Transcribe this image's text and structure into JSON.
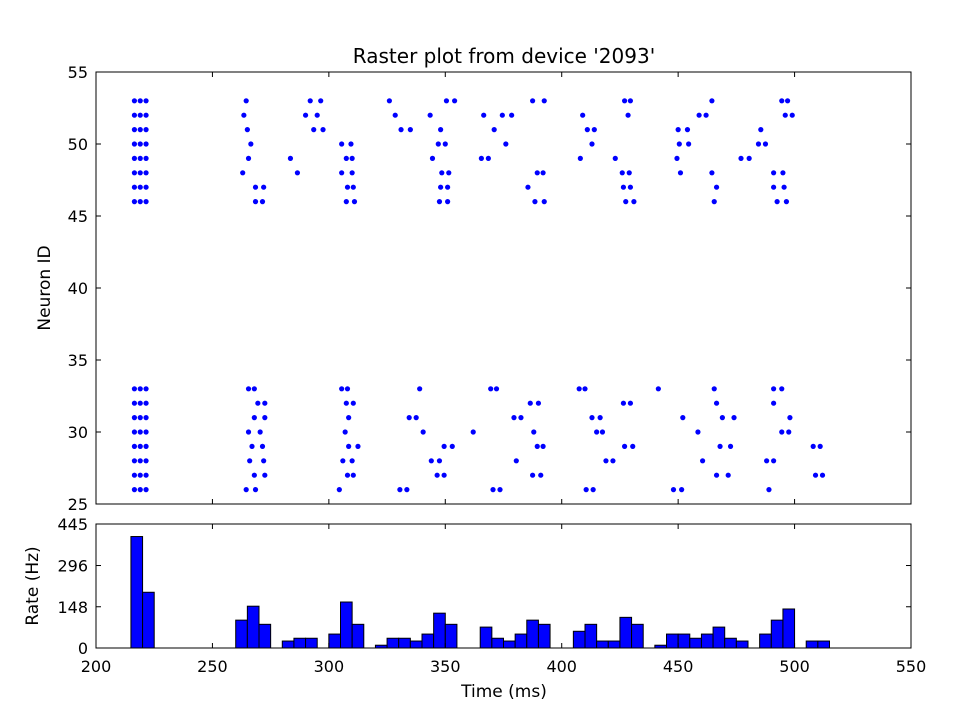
{
  "colors": {
    "marker": "#0000ff",
    "bar_fill": "#0000ff",
    "bar_edge": "#000000",
    "axes": "#000000"
  },
  "chart_data": [
    {
      "type": "scatter",
      "title": "Raster plot from device '2093'",
      "xlabel": "",
      "ylabel": "Neuron ID",
      "xlim": [
        200,
        550
      ],
      "ylim": [
        25,
        55
      ],
      "yticks": [
        25,
        30,
        35,
        40,
        45,
        50,
        55
      ],
      "grid": false,
      "groups": [
        {
          "neurons": [
            46,
            47,
            48,
            49,
            50,
            51,
            52,
            53
          ],
          "times": [
            216.5,
            219.0,
            221.5
          ]
        },
        {
          "neurons": [
            26,
            27,
            28,
            29,
            30,
            31,
            32,
            33
          ],
          "times": [
            216.5,
            219.0,
            221.5
          ]
        },
        {
          "neurons": [
            53
          ],
          "times": [
            264.5
          ]
        },
        {
          "neurons": [
            52
          ],
          "times": [
            263.5
          ]
        },
        {
          "neurons": [
            51
          ],
          "times": [
            265.0
          ]
        },
        {
          "neurons": [
            50
          ],
          "times": [
            266.5
          ]
        },
        {
          "neurons": [
            49
          ],
          "times": [
            265.5
          ]
        },
        {
          "neurons": [
            48
          ],
          "times": [
            263.0
          ]
        },
        {
          "neurons": [
            47
          ],
          "times": [
            268.5,
            272.0
          ]
        },
        {
          "neurons": [
            46
          ],
          "times": [
            268.5,
            271.5
          ]
        },
        {
          "neurons": [
            33
          ],
          "times": [
            265.5,
            268.0
          ]
        },
        {
          "neurons": [
            32
          ],
          "times": [
            269.5,
            272.5
          ]
        },
        {
          "neurons": [
            31
          ],
          "times": [
            268.0,
            272.5
          ]
        },
        {
          "neurons": [
            30
          ],
          "times": [
            265.5,
            270.5
          ]
        },
        {
          "neurons": [
            29
          ],
          "times": [
            267.0,
            271.5
          ]
        },
        {
          "neurons": [
            28
          ],
          "times": [
            266.0,
            272.0
          ]
        },
        {
          "neurons": [
            27
          ],
          "times": [
            268.0,
            272.5
          ]
        },
        {
          "neurons": [
            26
          ],
          "times": [
            264.5,
            268.5
          ]
        },
        {
          "neurons": [
            49
          ],
          "times": [
            283.5
          ]
        },
        {
          "neurons": [
            48
          ],
          "times": [
            286.5
          ]
        },
        {
          "neurons": [
            53
          ],
          "times": [
            292.0,
            296.5
          ]
        },
        {
          "neurons": [
            52
          ],
          "times": [
            290.0,
            295.0
          ]
        },
        {
          "neurons": [
            51
          ],
          "times": [
            293.5,
            297.5
          ]
        },
        {
          "neurons": [
            50
          ],
          "times": [
            305.5,
            309.5
          ]
        },
        {
          "neurons": [
            49
          ],
          "times": [
            307.5,
            310.0
          ]
        },
        {
          "neurons": [
            48
          ],
          "times": [
            305.5,
            310.0
          ]
        },
        {
          "neurons": [
            47
          ],
          "times": [
            308.0,
            310.5
          ]
        },
        {
          "neurons": [
            46
          ],
          "times": [
            307.5,
            311.0
          ]
        },
        {
          "neurons": [
            33
          ],
          "times": [
            305.5,
            308.0
          ]
        },
        {
          "neurons": [
            32
          ],
          "times": [
            307.5,
            310.5
          ]
        },
        {
          "neurons": [
            31
          ],
          "times": [
            308.5
          ]
        },
        {
          "neurons": [
            30
          ],
          "times": [
            307.0
          ]
        },
        {
          "neurons": [
            29
          ],
          "times": [
            308.5,
            312.5
          ]
        },
        {
          "neurons": [
            28
          ],
          "times": [
            306.0,
            310.0
          ]
        },
        {
          "neurons": [
            27
          ],
          "times": [
            308.0,
            310.5
          ]
        },
        {
          "neurons": [
            26
          ],
          "times": [
            304.5
          ]
        },
        {
          "neurons": [
            53
          ],
          "times": [
            326.0
          ]
        },
        {
          "neurons": [
            52
          ],
          "times": [
            328.5
          ]
        },
        {
          "neurons": [
            51
          ],
          "times": [
            331.0,
            335.0
          ]
        },
        {
          "neurons": [
            26
          ],
          "times": [
            330.5,
            333.5
          ]
        },
        {
          "neurons": [
            31
          ],
          "times": [
            334.5,
            337.5
          ]
        },
        {
          "neurons": [
            33
          ],
          "times": [
            339.0
          ]
        },
        {
          "neurons": [
            30
          ],
          "times": [
            340.5
          ]
        },
        {
          "neurons": [
            52
          ],
          "times": [
            343.5
          ]
        },
        {
          "neurons": [
            49
          ],
          "times": [
            344.5
          ]
        },
        {
          "neurons": [
            50
          ],
          "times": [
            347.0,
            350.0
          ]
        },
        {
          "neurons": [
            48
          ],
          "times": [
            348.5,
            351.5
          ]
        },
        {
          "neurons": [
            47
          ],
          "times": [
            348.0,
            351.0
          ]
        },
        {
          "neurons": [
            46
          ],
          "times": [
            347.5,
            351.0
          ]
        },
        {
          "neurons": [
            53
          ],
          "times": [
            350.5,
            354.0
          ]
        },
        {
          "neurons": [
            51
          ],
          "times": [
            348.0
          ]
        },
        {
          "neurons": [
            29
          ],
          "times": [
            349.5,
            353.0
          ]
        },
        {
          "neurons": [
            28
          ],
          "times": [
            344.0,
            347.5
          ]
        },
        {
          "neurons": [
            27
          ],
          "times": [
            346.5,
            349.5
          ]
        },
        {
          "neurons": [
            52
          ],
          "times": [
            366.5
          ]
        },
        {
          "neurons": [
            49
          ],
          "times": [
            365.5,
            368.5
          ]
        },
        {
          "neurons": [
            51
          ],
          "times": [
            371.0
          ]
        },
        {
          "neurons": [
            33
          ],
          "times": [
            369.5,
            372.0
          ]
        },
        {
          "neurons": [
            30
          ],
          "times": [
            362.0
          ]
        },
        {
          "neurons": [
            26
          ],
          "times": [
            370.5,
            373.5
          ]
        },
        {
          "neurons": [
            52
          ],
          "times": [
            374.5,
            378.5
          ]
        },
        {
          "neurons": [
            50
          ],
          "times": [
            376.0
          ]
        },
        {
          "neurons": [
            31
          ],
          "times": [
            379.5,
            382.5
          ]
        },
        {
          "neurons": [
            28
          ],
          "times": [
            380.5
          ]
        },
        {
          "neurons": [
            47
          ],
          "times": [
            385.5
          ]
        },
        {
          "neurons": [
            53
          ],
          "times": [
            387.5,
            392.5
          ]
        },
        {
          "neurons": [
            48
          ],
          "times": [
            389.5,
            392.0
          ]
        },
        {
          "neurons": [
            46
          ],
          "times": [
            388.5,
            392.5
          ]
        },
        {
          "neurons": [
            32
          ],
          "times": [
            386.5,
            390.0
          ]
        },
        {
          "neurons": [
            30
          ],
          "times": [
            388.0
          ]
        },
        {
          "neurons": [
            29
          ],
          "times": [
            389.5,
            392.0
          ]
        },
        {
          "neurons": [
            27
          ],
          "times": [
            387.5,
            391.0
          ]
        },
        {
          "neurons": [
            33
          ],
          "times": [
            407.5,
            410.0
          ]
        },
        {
          "neurons": [
            52
          ],
          "times": [
            409.0
          ]
        },
        {
          "neurons": [
            51
          ],
          "times": [
            411.0,
            414.0
          ]
        },
        {
          "neurons": [
            50
          ],
          "times": [
            413.0
          ]
        },
        {
          "neurons": [
            49
          ],
          "times": [
            408.0
          ]
        },
        {
          "neurons": [
            31
          ],
          "times": [
            413.0,
            416.5
          ]
        },
        {
          "neurons": [
            30
          ],
          "times": [
            415.0,
            417.5
          ]
        },
        {
          "neurons": [
            26
          ],
          "times": [
            410.5,
            413.5
          ]
        },
        {
          "neurons": [
            28
          ],
          "times": [
            419.0,
            422.0
          ]
        },
        {
          "neurons": [
            49
          ],
          "times": [
            423.0
          ]
        },
        {
          "neurons": [
            53
          ],
          "times": [
            427.0,
            429.5
          ]
        },
        {
          "neurons": [
            52
          ],
          "times": [
            428.5
          ]
        },
        {
          "neurons": [
            48
          ],
          "times": [
            426.0,
            429.0
          ]
        },
        {
          "neurons": [
            47
          ],
          "times": [
            426.5,
            429.5
          ]
        },
        {
          "neurons": [
            46
          ],
          "times": [
            427.5,
            431.0
          ]
        },
        {
          "neurons": [
            32
          ],
          "times": [
            426.5,
            429.5
          ]
        },
        {
          "neurons": [
            29
          ],
          "times": [
            427.0,
            430.5
          ]
        },
        {
          "neurons": [
            33
          ],
          "times": [
            441.5
          ]
        },
        {
          "neurons": [
            51
          ],
          "times": [
            450.0,
            454.0
          ]
        },
        {
          "neurons": [
            50
          ],
          "times": [
            450.5,
            454.5
          ]
        },
        {
          "neurons": [
            49
          ],
          "times": [
            449.5
          ]
        },
        {
          "neurons": [
            48
          ],
          "times": [
            451.0
          ]
        },
        {
          "neurons": [
            26
          ],
          "times": [
            448.0,
            451.5
          ]
        },
        {
          "neurons": [
            31
          ],
          "times": [
            452.0
          ]
        },
        {
          "neurons": [
            52
          ],
          "times": [
            459.0,
            462.0
          ]
        },
        {
          "neurons": [
            30
          ],
          "times": [
            458.5
          ]
        },
        {
          "neurons": [
            28
          ],
          "times": [
            460.5
          ]
        },
        {
          "neurons": [
            53
          ],
          "times": [
            464.5
          ]
        },
        {
          "neurons": [
            48
          ],
          "times": [
            464.5
          ]
        },
        {
          "neurons": [
            47
          ],
          "times": [
            466.5
          ]
        },
        {
          "neurons": [
            46
          ],
          "times": [
            465.5
          ]
        },
        {
          "neurons": [
            33
          ],
          "times": [
            465.5
          ]
        },
        {
          "neurons": [
            32
          ],
          "times": [
            466.5
          ]
        },
        {
          "neurons": [
            31
          ],
          "times": [
            469.0,
            474.0
          ]
        },
        {
          "neurons": [
            29
          ],
          "times": [
            468.0,
            472.5
          ]
        },
        {
          "neurons": [
            27
          ],
          "times": [
            466.5,
            471.5
          ]
        },
        {
          "neurons": [
            49
          ],
          "times": [
            477.0,
            480.5
          ]
        },
        {
          "neurons": [
            51
          ],
          "times": [
            485.5
          ]
        },
        {
          "neurons": [
            50
          ],
          "times": [
            484.5,
            487.5
          ]
        },
        {
          "neurons": [
            28
          ],
          "times": [
            488.0,
            491.0
          ]
        },
        {
          "neurons": [
            26
          ],
          "times": [
            489.0
          ]
        },
        {
          "neurons": [
            53
          ],
          "times": [
            494.5,
            497.0
          ]
        },
        {
          "neurons": [
            52
          ],
          "times": [
            496.0,
            499.0
          ]
        },
        {
          "neurons": [
            48
          ],
          "times": [
            491.0,
            495.0
          ]
        },
        {
          "neurons": [
            47
          ],
          "times": [
            491.0,
            495.5
          ]
        },
        {
          "neurons": [
            46
          ],
          "times": [
            492.5,
            496.5
          ]
        },
        {
          "neurons": [
            33
          ],
          "times": [
            491.0,
            494.5
          ]
        },
        {
          "neurons": [
            32
          ],
          "times": [
            491.0
          ]
        },
        {
          "neurons": [
            31
          ],
          "times": [
            498.0
          ]
        },
        {
          "neurons": [
            30
          ],
          "times": [
            494.5,
            497.5
          ]
        },
        {
          "neurons": [
            29
          ],
          "times": [
            508.0,
            511.0
          ]
        },
        {
          "neurons": [
            27
          ],
          "times": [
            509.0,
            512.0
          ]
        }
      ]
    },
    {
      "type": "bar",
      "title": "",
      "xlabel": "Time (ms)",
      "ylabel": "Rate (Hz)",
      "xlim": [
        200,
        550
      ],
      "ylim": [
        0,
        445
      ],
      "xticks": [
        200,
        250,
        300,
        350,
        400,
        450,
        500,
        550
      ],
      "yticks": [
        0,
        148,
        296,
        445
      ],
      "bin_width": 5,
      "bins": [
        215,
        220,
        225,
        230,
        235,
        240,
        245,
        250,
        255,
        260,
        265,
        270,
        275,
        280,
        285,
        290,
        295,
        300,
        305,
        310,
        315,
        320,
        325,
        330,
        335,
        340,
        345,
        350,
        355,
        360,
        365,
        370,
        375,
        380,
        385,
        390,
        395,
        400,
        405,
        410,
        415,
        420,
        425,
        430,
        435,
        440,
        445,
        450,
        455,
        460,
        465,
        470,
        475,
        480,
        485,
        490,
        495,
        500,
        505,
        510
      ],
      "values": [
        400,
        200,
        0,
        0,
        0,
        0,
        0,
        0,
        0,
        100,
        150,
        85,
        0,
        25,
        35,
        35,
        0,
        50,
        165,
        85,
        0,
        10,
        35,
        35,
        25,
        50,
        125,
        85,
        0,
        0,
        75,
        35,
        25,
        50,
        100,
        85,
        0,
        0,
        60,
        85,
        25,
        25,
        110,
        85,
        0,
        10,
        50,
        50,
        35,
        50,
        75,
        35,
        25,
        0,
        50,
        100,
        140,
        0,
        25,
        25
      ]
    }
  ]
}
